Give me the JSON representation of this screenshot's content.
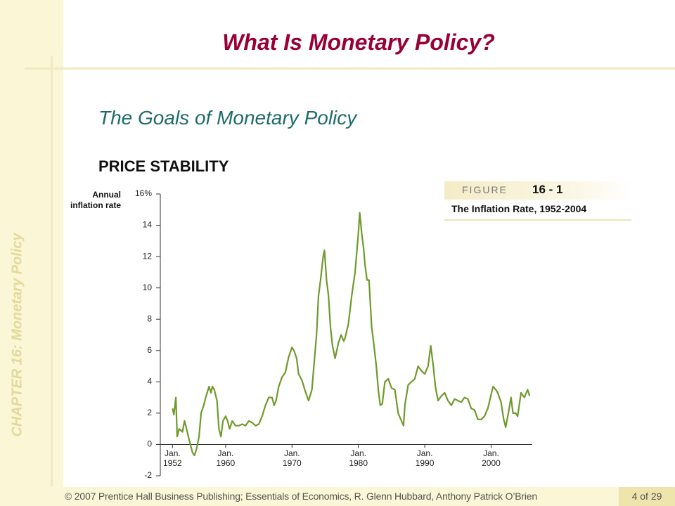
{
  "slide": {
    "title": "What Is Monetary Policy?",
    "subtitle": "The Goals of Monetary Policy",
    "heading": "PRICE STABILITY",
    "chapter": "CHAPTER 16:  Monetary Policy",
    "footer": "© 2007 Prentice Hall Business Publishing; Essentials of Economics, R. Glenn Hubbard, Anthony Patrick O’Brien",
    "page": "4 of 29"
  },
  "figure": {
    "label": "FIGURE",
    "number": "16 - 1",
    "caption": "The Inflation Rate, 1952-2004"
  },
  "chart_data": {
    "type": "line",
    "ylabel": "Annual inflation rate",
    "color": "#6f9a2b",
    "x": [
      1952.0,
      1952.2,
      1952.5,
      1952.7,
      1953.0,
      1953.5,
      1953.8,
      1954.0,
      1954.5,
      1955.0,
      1955.3,
      1955.6,
      1956.0,
      1956.3,
      1956.7,
      1957.0,
      1957.5,
      1957.8,
      1958.0,
      1958.3,
      1958.7,
      1959.0,
      1959.3,
      1959.6,
      1960.0,
      1960.3,
      1960.6,
      1961.0,
      1961.5,
      1962.0,
      1962.5,
      1963.0,
      1963.5,
      1964.0,
      1964.5,
      1965.0,
      1965.5,
      1966.0,
      1966.5,
      1967.0,
      1967.3,
      1967.6,
      1968.0,
      1968.5,
      1969.0,
      1969.5,
      1970.0,
      1970.3,
      1970.7,
      1971.0,
      1971.5,
      1972.0,
      1972.5,
      1973.0,
      1973.3,
      1973.7,
      1974.0,
      1974.3,
      1974.7,
      1974.9,
      1975.2,
      1975.5,
      1975.8,
      1976.1,
      1976.5,
      1977.0,
      1977.4,
      1977.8,
      1978.0,
      1978.5,
      1979.0,
      1979.5,
      1980.0,
      1980.2,
      1980.5,
      1980.8,
      1981.0,
      1981.3,
      1981.6,
      1982.0,
      1982.3,
      1982.7,
      1983.0,
      1983.3,
      1983.6,
      1984.0,
      1984.5,
      1985.0,
      1985.5,
      1986.0,
      1986.5,
      1986.8,
      1987.0,
      1987.5,
      1988.0,
      1988.5,
      1989.0,
      1989.5,
      1990.0,
      1990.5,
      1990.9,
      1991.3,
      1991.6,
      1992.0,
      1992.5,
      1993.0,
      1993.5,
      1994.0,
      1994.5,
      1995.0,
      1995.5,
      1996.0,
      1996.5,
      1997.0,
      1997.5,
      1998.0,
      1998.5,
      1999.0,
      1999.5,
      2000.0,
      2000.3,
      2000.7,
      2001.0,
      2001.5,
      2001.9,
      2002.2,
      2002.6,
      2003.0,
      2003.3,
      2003.7,
      2004.0,
      2004.5,
      2005.0,
      2005.5,
      2005.8
    ],
    "values": [
      2.3,
      1.9,
      3.0,
      0.5,
      1.0,
      0.8,
      1.5,
      1.2,
      0.3,
      -0.5,
      -0.7,
      -0.3,
      0.5,
      2.0,
      2.5,
      3.0,
      3.7,
      3.3,
      3.7,
      3.5,
      2.8,
      1.0,
      0.5,
      1.5,
      1.8,
      1.5,
      1.0,
      1.5,
      1.2,
      1.2,
      1.3,
      1.2,
      1.5,
      1.4,
      1.2,
      1.3,
      1.8,
      2.5,
      3.0,
      3.0,
      2.5,
      2.8,
      3.7,
      4.3,
      4.6,
      5.6,
      6.2,
      6.0,
      5.5,
      4.5,
      4.1,
      3.4,
      2.8,
      3.5,
      5.0,
      7.0,
      9.5,
      10.5,
      12.0,
      12.4,
      10.5,
      9.5,
      7.5,
      6.3,
      5.5,
      6.5,
      7.0,
      6.6,
      6.8,
      7.7,
      9.5,
      11.0,
      13.5,
      14.8,
      13.5,
      12.5,
      11.5,
      10.5,
      10.5,
      7.5,
      6.5,
      5.0,
      3.5,
      2.5,
      2.6,
      4.0,
      4.2,
      3.6,
      3.5,
      2.0,
      1.5,
      1.2,
      2.5,
      3.8,
      4.0,
      4.2,
      5.0,
      4.7,
      4.5,
      5.0,
      6.3,
      5.0,
      3.7,
      2.8,
      3.1,
      3.3,
      2.8,
      2.5,
      2.9,
      2.8,
      2.7,
      3.0,
      2.9,
      2.3,
      2.2,
      1.6,
      1.6,
      1.8,
      2.3,
      3.2,
      3.7,
      3.5,
      3.3,
      2.7,
      1.6,
      1.1,
      2.0,
      3.0,
      2.0,
      2.0,
      1.8,
      3.3,
      3.0,
      3.5,
      3.1
    ],
    "xlim": [
      1950.16,
      2006.2
    ],
    "ylim": [
      -2,
      16
    ],
    "xticks": [
      {
        "value": 1952,
        "label": "Jan. 1952"
      },
      {
        "value": 1960,
        "label": "Jan. 1960"
      },
      {
        "value": 1970,
        "label": "Jan. 1970"
      },
      {
        "value": 1980,
        "label": "Jan. 1980"
      },
      {
        "value": 1990,
        "label": "Jan. 1990"
      },
      {
        "value": 2000,
        "label": "Jan. 2000"
      }
    ],
    "yticks": [
      -2,
      0,
      2,
      4,
      6,
      8,
      10,
      12,
      14,
      {
        "value": 16,
        "label": "16%"
      }
    ]
  }
}
